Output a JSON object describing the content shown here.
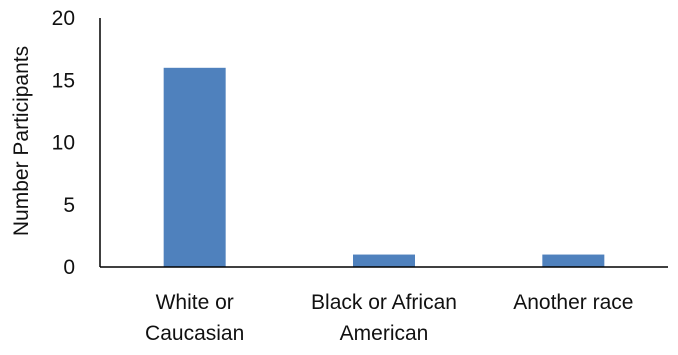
{
  "chart_data": {
    "type": "bar",
    "categories": [
      [
        "White or",
        "Caucasian"
      ],
      [
        "Black or African",
        "American"
      ],
      [
        "Another race"
      ]
    ],
    "values": [
      16,
      1,
      1
    ],
    "ylabel": "Number Participants",
    "xlabel": "",
    "ylim": [
      0,
      20
    ],
    "yticks": [
      0,
      5,
      10,
      15,
      20
    ],
    "grid": false,
    "legend": "none",
    "colors": {
      "bar": "#4F81BD",
      "axis": "#000000"
    }
  }
}
